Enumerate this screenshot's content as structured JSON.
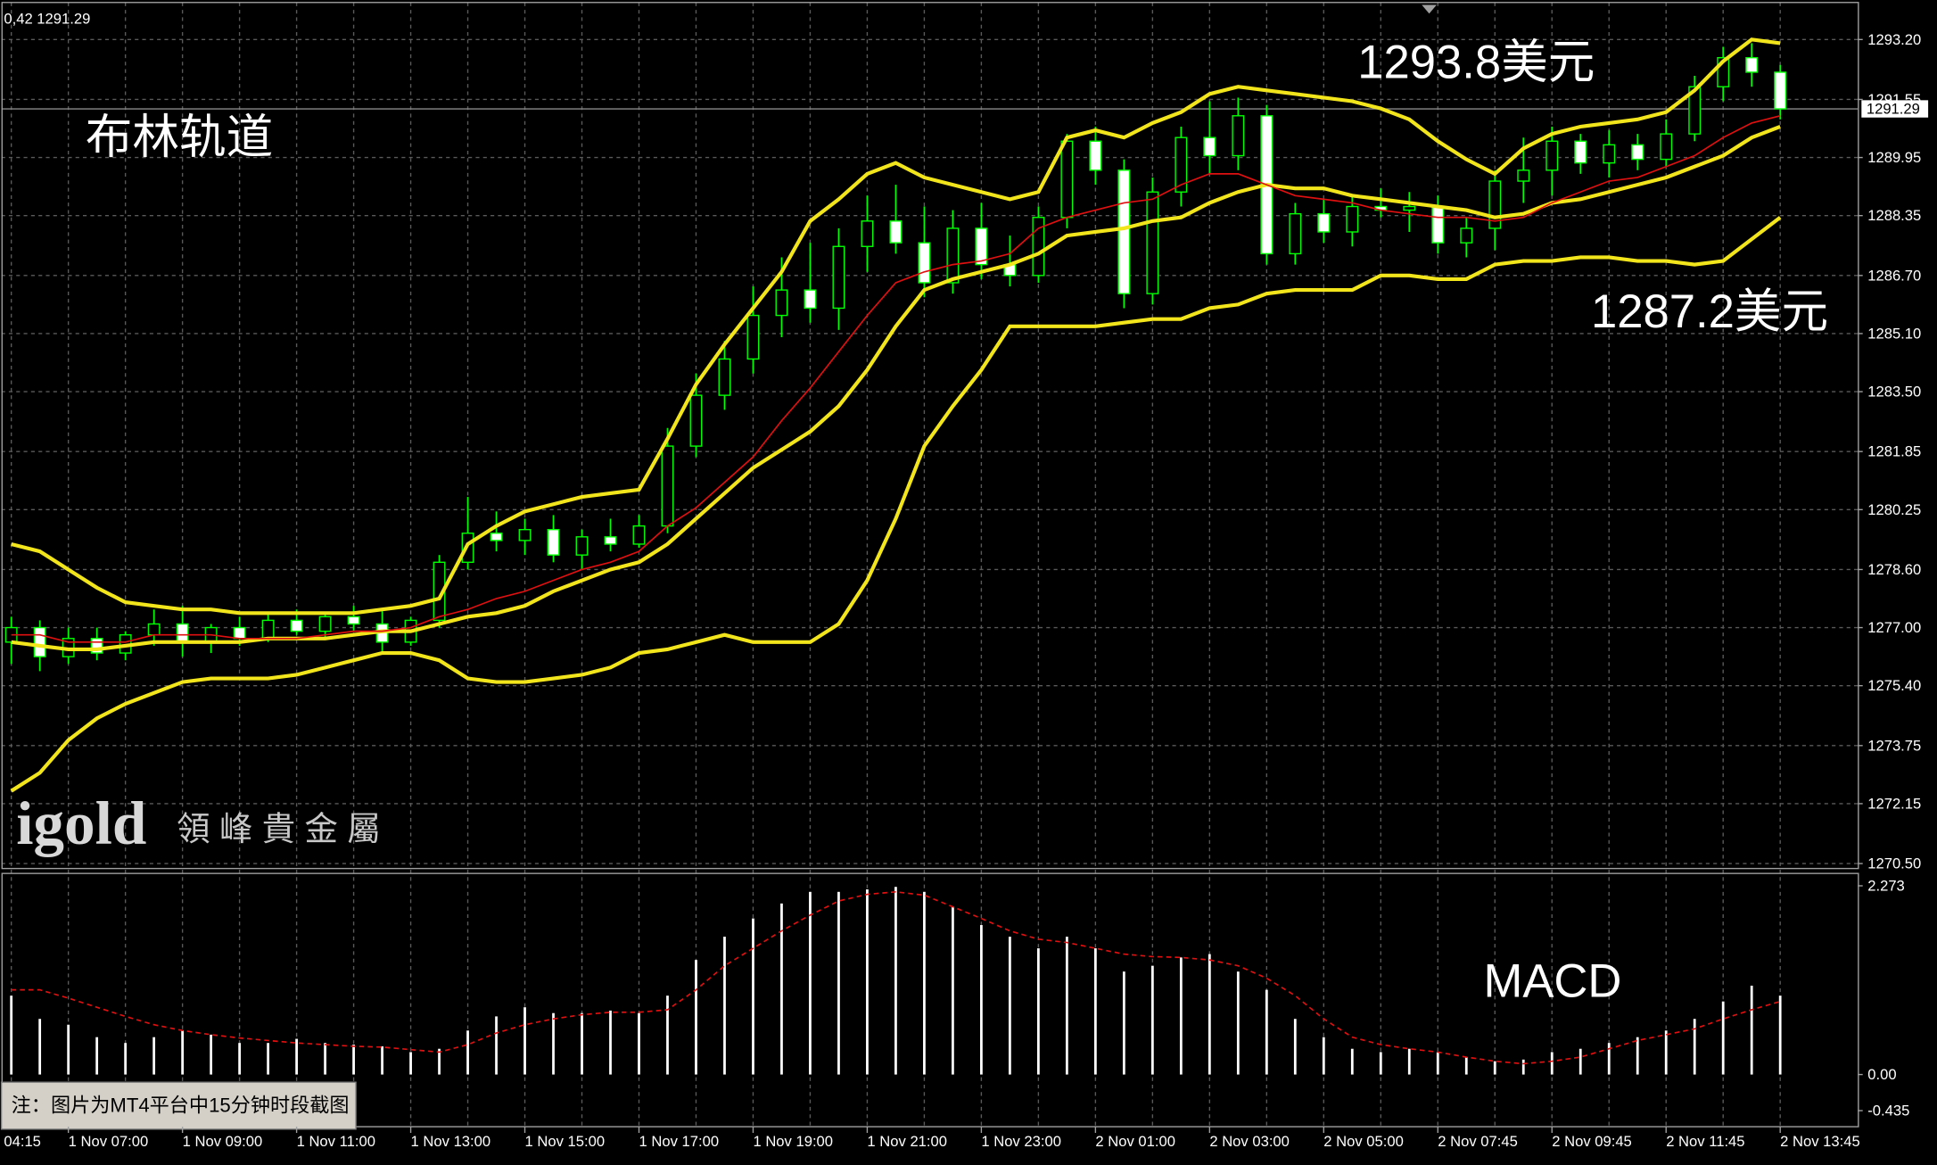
{
  "header": "0,42 1291.29",
  "note": "注：图片为MT4平台中15分钟时段截图",
  "watermark": {
    "logo": "igold",
    "company": "領 峰 貴 金 屬"
  },
  "chart_data": [
    {
      "type": "candlestick",
      "title": "布林轨道",
      "annotations": [
        "1293.8美元",
        "1287.2美元"
      ],
      "first_label": "04:15",
      "categories": [
        null,
        null,
        "1 Nov 07:00",
        null,
        null,
        null,
        "1 Nov 09:00",
        null,
        null,
        null,
        "1 Nov 11:00",
        null,
        null,
        null,
        "1 Nov 13:00",
        null,
        null,
        null,
        "1 Nov 15:00",
        null,
        null,
        null,
        "1 Nov 17:00",
        null,
        null,
        null,
        "1 Nov 19:00",
        null,
        null,
        null,
        "1 Nov 21:00",
        null,
        null,
        null,
        "1 Nov 23:00",
        null,
        null,
        null,
        "2 Nov 01:00",
        null,
        null,
        null,
        "2 Nov 03:00",
        null,
        null,
        null,
        "2 Nov 05:00",
        null,
        null,
        null,
        "2 Nov 07:45",
        null,
        null,
        null,
        "2 Nov 09:45",
        null,
        null,
        null,
        "2 Nov 11:45",
        null,
        null,
        null,
        "2 Nov 13:45"
      ],
      "open": [
        1276.6,
        1277.0,
        1276.2,
        1276.7,
        1276.3,
        1276.8,
        1277.1,
        1276.6,
        1277.0,
        1276.7,
        1277.2,
        1276.9,
        1277.3,
        1277.1,
        1276.6,
        1277.2,
        1278.8,
        1279.6,
        1279.4,
        1279.7,
        1279.0,
        1279.5,
        1279.3,
        1279.8,
        1282.0,
        1283.4,
        1284.4,
        1285.6,
        1286.3,
        1285.8,
        1287.5,
        1288.2,
        1287.6,
        1286.5,
        1288.0,
        1287.0,
        1286.7,
        1288.3,
        1290.4,
        1289.6,
        1286.2,
        1289.0,
        1290.5,
        1290.0,
        1291.1,
        1287.3,
        1288.4,
        1287.9,
        1288.6,
        1288.5,
        1288.6,
        1287.6,
        1288.0,
        1289.3,
        1289.6,
        1290.4,
        1289.8,
        1290.3,
        1289.9,
        1290.6,
        1291.9,
        1292.7,
        1292.3
      ],
      "high": [
        1277.3,
        1277.2,
        1277.0,
        1277.0,
        1276.9,
        1277.5,
        1277.6,
        1277.1,
        1277.3,
        1277.4,
        1277.5,
        1277.4,
        1277.6,
        1277.5,
        1277.3,
        1279.0,
        1280.6,
        1280.2,
        1280.0,
        1280.1,
        1279.7,
        1280.0,
        1280.1,
        1282.5,
        1284.0,
        1284.9,
        1286.4,
        1287.2,
        1287.6,
        1288.0,
        1288.9,
        1289.2,
        1288.6,
        1288.5,
        1288.7,
        1287.8,
        1288.6,
        1290.6,
        1290.8,
        1289.9,
        1289.4,
        1290.8,
        1291.5,
        1291.6,
        1291.4,
        1288.7,
        1288.8,
        1288.9,
        1289.1,
        1289.0,
        1288.9,
        1288.3,
        1289.6,
        1290.5,
        1290.8,
        1290.6,
        1290.7,
        1290.6,
        1291.0,
        1292.2,
        1293.0,
        1293.1,
        1292.5
      ],
      "low": [
        1276.0,
        1275.8,
        1276.0,
        1276.1,
        1276.1,
        1276.5,
        1276.2,
        1276.3,
        1276.5,
        1276.6,
        1276.8,
        1276.7,
        1276.9,
        1276.3,
        1276.5,
        1277.0,
        1278.6,
        1279.1,
        1279.0,
        1278.8,
        1278.6,
        1279.1,
        1279.2,
        1279.6,
        1281.7,
        1283.0,
        1284.0,
        1285.0,
        1285.4,
        1285.2,
        1286.8,
        1287.3,
        1286.1,
        1286.2,
        1286.6,
        1286.4,
        1286.5,
        1288.0,
        1289.2,
        1285.8,
        1285.9,
        1288.6,
        1289.5,
        1289.6,
        1287.0,
        1287.0,
        1287.6,
        1287.5,
        1288.3,
        1287.9,
        1287.3,
        1287.2,
        1287.4,
        1288.7,
        1288.9,
        1289.5,
        1289.4,
        1289.6,
        1289.7,
        1290.4,
        1291.5,
        1291.9,
        1291.0
      ],
      "close": [
        1277.0,
        1276.2,
        1276.7,
        1276.3,
        1276.8,
        1277.1,
        1276.6,
        1277.0,
        1276.7,
        1277.2,
        1276.9,
        1277.3,
        1277.1,
        1276.6,
        1277.2,
        1278.8,
        1279.6,
        1279.4,
        1279.7,
        1279.0,
        1279.5,
        1279.3,
        1279.8,
        1282.0,
        1283.4,
        1284.4,
        1285.6,
        1286.3,
        1285.8,
        1287.5,
        1288.2,
        1287.6,
        1286.5,
        1288.0,
        1287.0,
        1286.7,
        1288.3,
        1290.4,
        1289.6,
        1286.2,
        1289.0,
        1290.5,
        1290.0,
        1291.1,
        1287.3,
        1288.4,
        1287.9,
        1288.6,
        1288.5,
        1288.6,
        1287.6,
        1288.0,
        1289.3,
        1289.6,
        1290.4,
        1289.8,
        1290.3,
        1289.9,
        1290.6,
        1291.9,
        1292.7,
        1292.3,
        1291.29
      ],
      "up_fill": "#000000",
      "down_fill": "#ffffff",
      "candle_color": "#00ff00",
      "lines": [
        {
          "color": "#f2e51c",
          "values": [
            1279.3,
            1279.1,
            1278.6,
            1278.1,
            1277.7,
            1277.6,
            1277.5,
            1277.5,
            1277.4,
            1277.4,
            1277.4,
            1277.4,
            1277.4,
            1277.5,
            1277.6,
            1277.8,
            1279.3,
            1279.8,
            1280.2,
            1280.4,
            1280.6,
            1280.7,
            1280.8,
            1282.2,
            1283.7,
            1284.8,
            1285.8,
            1286.8,
            1288.2,
            1288.8,
            1289.5,
            1289.8,
            1289.4,
            1289.2,
            1289.0,
            1288.8,
            1289.0,
            1290.5,
            1290.7,
            1290.5,
            1290.9,
            1291.2,
            1291.7,
            1291.9,
            1291.8,
            1291.7,
            1291.6,
            1291.5,
            1291.3,
            1291.0,
            1290.4,
            1289.9,
            1289.5,
            1290.2,
            1290.6,
            1290.8,
            1290.9,
            1291.0,
            1291.2,
            1291.8,
            1292.6,
            1293.2,
            1293.1
          ]
        },
        {
          "color": "#f2e51c",
          "values": [
            1276.6,
            1276.5,
            1276.4,
            1276.4,
            1276.5,
            1276.6,
            1276.6,
            1276.6,
            1276.6,
            1276.7,
            1276.7,
            1276.7,
            1276.8,
            1276.9,
            1276.9,
            1277.1,
            1277.3,
            1277.4,
            1277.6,
            1278.0,
            1278.3,
            1278.6,
            1278.8,
            1279.3,
            1280.0,
            1280.7,
            1281.4,
            1281.9,
            1282.4,
            1283.1,
            1284.1,
            1285.3,
            1286.3,
            1286.6,
            1286.8,
            1287.0,
            1287.3,
            1287.8,
            1287.9,
            1288.0,
            1288.2,
            1288.3,
            1288.7,
            1289.0,
            1289.2,
            1289.1,
            1289.1,
            1288.9,
            1288.8,
            1288.7,
            1288.6,
            1288.5,
            1288.3,
            1288.4,
            1288.7,
            1288.8,
            1289.0,
            1289.2,
            1289.4,
            1289.7,
            1290.0,
            1290.5,
            1290.8
          ]
        },
        {
          "color": "#f2e51c",
          "values": [
            1272.5,
            1273.0,
            1273.9,
            1274.5,
            1274.9,
            1275.2,
            1275.5,
            1275.6,
            1275.6,
            1275.6,
            1275.7,
            1275.9,
            1276.1,
            1276.3,
            1276.3,
            1276.1,
            1275.6,
            1275.5,
            1275.5,
            1275.6,
            1275.7,
            1275.9,
            1276.3,
            1276.4,
            1276.6,
            1276.8,
            1276.6,
            1276.6,
            1276.6,
            1277.1,
            1278.3,
            1280.0,
            1282.0,
            1283.1,
            1284.1,
            1285.3,
            1285.3,
            1285.3,
            1285.3,
            1285.4,
            1285.5,
            1285.5,
            1285.8,
            1285.9,
            1286.2,
            1286.3,
            1286.3,
            1286.3,
            1286.7,
            1286.7,
            1286.6,
            1286.6,
            1287.0,
            1287.1,
            1287.1,
            1287.2,
            1287.2,
            1287.1,
            1287.1,
            1287.0,
            1287.1,
            1287.7,
            1288.3
          ]
        },
        {
          "color": "#e01010",
          "values": [
            1276.8,
            1276.8,
            1276.6,
            1276.6,
            1276.6,
            1276.8,
            1276.8,
            1276.8,
            1276.7,
            1276.7,
            1276.7,
            1276.8,
            1276.9,
            1276.9,
            1277.0,
            1277.3,
            1277.5,
            1277.8,
            1278.0,
            1278.3,
            1278.6,
            1278.8,
            1279.1,
            1279.8,
            1280.3,
            1281.0,
            1281.7,
            1282.7,
            1283.6,
            1284.6,
            1285.6,
            1286.5,
            1286.8,
            1287.0,
            1287.1,
            1287.3,
            1288.0,
            1288.3,
            1288.5,
            1288.7,
            1288.8,
            1289.2,
            1289.5,
            1289.5,
            1289.2,
            1288.9,
            1288.8,
            1288.7,
            1288.5,
            1288.4,
            1288.3,
            1288.3,
            1288.2,
            1288.3,
            1288.7,
            1289.0,
            1289.3,
            1289.4,
            1289.7,
            1290.0,
            1290.5,
            1290.9,
            1291.1
          ]
        }
      ],
      "ylim": [
        1270.5,
        1293.2
      ],
      "yticks": [
        {
          "value": 1293.2,
          "label": "1293.20"
        },
        {
          "value": 1291.55,
          "label": "1291.55"
        },
        {
          "value": 1289.95,
          "label": "1289.95"
        },
        {
          "value": 1288.35,
          "label": "1288.35"
        },
        {
          "value": 1286.7,
          "label": "1286.70"
        },
        {
          "value": 1285.1,
          "label": "1285.10"
        },
        {
          "value": 1283.5,
          "label": "1283.50"
        },
        {
          "value": 1281.85,
          "label": "1281.85"
        },
        {
          "value": 1280.25,
          "label": "1280.25"
        },
        {
          "value": 1278.6,
          "label": "1278.60"
        },
        {
          "value": 1277,
          "label": "1277.00"
        },
        {
          "value": 1275.4,
          "label": "1275.40"
        },
        {
          "value": 1273.75,
          "label": "1273.75"
        },
        {
          "value": 1272.15,
          "label": "1272.15"
        },
        {
          "value": 1270.5,
          "label": "1270.50"
        }
      ],
      "current_price": {
        "value": 1291.29,
        "label": "1291.29"
      },
      "grid": true
    },
    {
      "type": "macd",
      "title": "MACD",
      "color": "#ffffff",
      "signal_color": "#e01010",
      "values": [
        0.95,
        0.67,
        0.6,
        0.45,
        0.38,
        0.45,
        0.53,
        0.48,
        0.38,
        0.38,
        0.43,
        0.38,
        0.36,
        0.34,
        0.27,
        0.31,
        0.53,
        0.7,
        0.81,
        0.74,
        0.74,
        0.77,
        0.74,
        0.95,
        1.38,
        1.66,
        1.88,
        2.06,
        2.2,
        2.2,
        2.23,
        2.26,
        2.2,
        2.02,
        1.8,
        1.66,
        1.52,
        1.66,
        1.52,
        1.24,
        1.31,
        1.41,
        1.45,
        1.24,
        1.02,
        0.67,
        0.45,
        0.31,
        0.27,
        0.31,
        0.27,
        0.21,
        0.16,
        0.18,
        0.27,
        0.31,
        0.38,
        0.45,
        0.53,
        0.67,
        0.88,
        1.07,
        0.95
      ],
      "signal": [
        1.02,
        1.02,
        0.92,
        0.81,
        0.7,
        0.6,
        0.53,
        0.48,
        0.44,
        0.41,
        0.38,
        0.36,
        0.34,
        0.33,
        0.3,
        0.27,
        0.36,
        0.5,
        0.6,
        0.67,
        0.72,
        0.75,
        0.75,
        0.78,
        1.02,
        1.31,
        1.52,
        1.73,
        1.92,
        2.09,
        2.17,
        2.2,
        2.16,
        2.02,
        1.88,
        1.73,
        1.63,
        1.59,
        1.52,
        1.45,
        1.42,
        1.41,
        1.38,
        1.31,
        1.16,
        0.95,
        0.67,
        0.45,
        0.36,
        0.31,
        0.27,
        0.21,
        0.16,
        0.13,
        0.16,
        0.21,
        0.31,
        0.41,
        0.48,
        0.55,
        0.67,
        0.78,
        0.88
      ],
      "ylim": [
        -0.435,
        2.273
      ],
      "yticks": [
        2.273,
        {
          "value": 0,
          "label": "0.00"
        },
        -0.435
      ]
    }
  ]
}
